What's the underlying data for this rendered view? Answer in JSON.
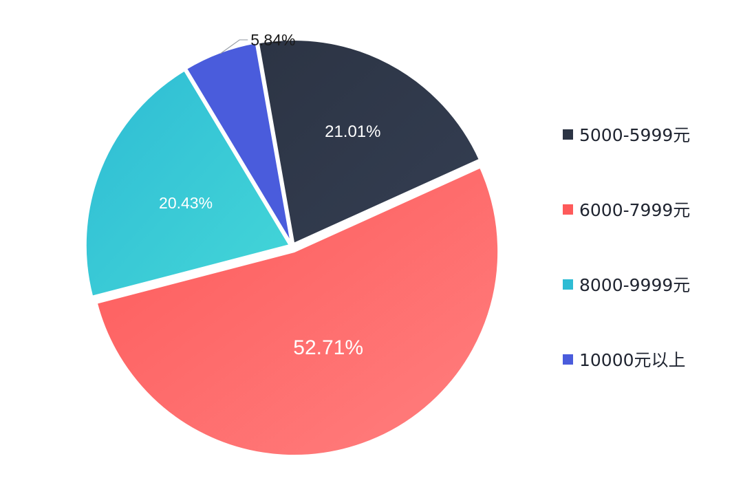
{
  "chart_data": {
    "type": "pie",
    "title": "",
    "slices": [
      {
        "label": "5000-5999元",
        "value": 21.01,
        "display": "21.01%",
        "color": "#2c3444",
        "color_end": "#343e52",
        "label_color": "#ffffff"
      },
      {
        "label": "6000-7999元",
        "value": 52.71,
        "display": "52.71%",
        "color": "#fe5a5a",
        "color_end": "#ff7f7f",
        "label_color": "#ffffff"
      },
      {
        "label": "8000-9999元",
        "value": 20.43,
        "display": "20.43%",
        "color": "#2ebcd4",
        "color_end": "#44d6d8",
        "label_color": "#ffffff"
      },
      {
        "label": "10000元以上",
        "value": 5.84,
        "display": "5.84%",
        "color": "#4a5cdc",
        "color_end": "#4a5cdc",
        "label_color": "#1a1a1a"
      }
    ],
    "legend_position": "right"
  }
}
